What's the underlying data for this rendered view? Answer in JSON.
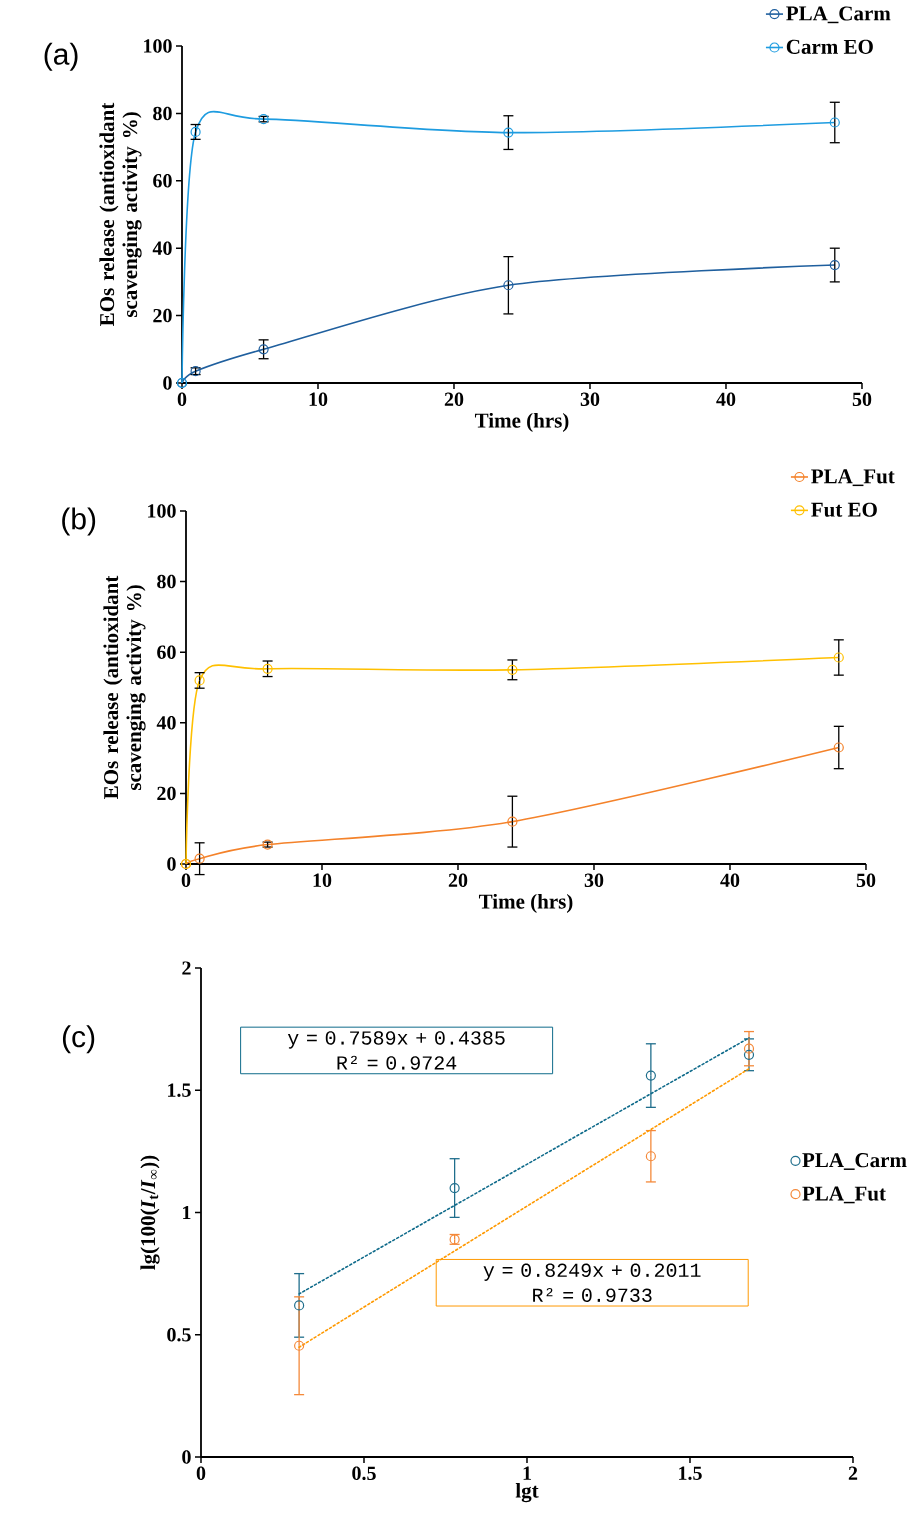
{
  "chart_data": [
    {
      "type": "line",
      "annotations": [
        "(a)"
      ],
      "xlabel": "Time (hrs)",
      "ylabel": "EOs release (antioxidant scavenging activity %)",
      "x": [
        0,
        1,
        6,
        24,
        48
      ],
      "xlim": [
        0,
        50
      ],
      "xticks": [
        0,
        10,
        20,
        30,
        40,
        50
      ],
      "ylim": [
        0,
        100
      ],
      "yticks": [
        0,
        20,
        40,
        60,
        80,
        100
      ],
      "marker": "circle",
      "legend": "top right",
      "series": [
        {
          "name": "PLA_Carm",
          "color": "#1f5f9e",
          "values": [
            0,
            3.5,
            10,
            29,
            35
          ],
          "errors": [
            null,
            1,
            2.8,
            8.5,
            5
          ]
        },
        {
          "name": "Carm EO",
          "color": "#1e9ce0",
          "values": [
            0,
            74.5,
            78.3,
            74.3,
            77.3
          ],
          "errors": [
            null,
            2.2,
            0.8,
            5,
            6
          ]
        }
      ]
    },
    {
      "type": "line",
      "annotations": [
        "(b)"
      ],
      "xlabel": "Time (hrs)",
      "ylabel": "EOs release (antioxidant scavenging activity %)",
      "x": [
        0,
        1,
        6,
        24,
        48
      ],
      "xlim": [
        0,
        50
      ],
      "xticks": [
        0,
        10,
        20,
        30,
        40,
        50
      ],
      "ylim": [
        0,
        100
      ],
      "yticks": [
        0,
        20,
        40,
        60,
        80,
        100
      ],
      "marker": "circle",
      "legend": "top right",
      "series": [
        {
          "name": "PLA_Fut",
          "color": "#f4822a",
          "values": [
            0,
            1.5,
            5.5,
            12,
            33
          ],
          "errors": [
            null,
            4.5,
            0.7,
            7.2,
            6
          ]
        },
        {
          "name": "Fut EO",
          "color": "#ffc000",
          "values": [
            0,
            52,
            55.3,
            55,
            58.5
          ],
          "errors": [
            null,
            2.2,
            2.2,
            2.8,
            5
          ]
        }
      ]
    },
    {
      "type": "scatter",
      "annotations": [
        "(c)",
        "y = 0.7589x + 0.4385\nR² = 0.9724",
        "y = 0.8249x + 0.2011\nR² = 0.9733"
      ],
      "xlabel": "lgt",
      "ylabel": "lg(100(*I*$_{t}$/*I*$_{∞}$))",
      "xlim": [
        0,
        2
      ],
      "xticks": [
        0,
        0.5,
        1,
        1.5,
        2
      ],
      "ylim": [
        0,
        2
      ],
      "yticks": [
        0,
        0.5,
        1,
        1.5,
        2
      ],
      "marker": "circle",
      "legend": "right",
      "series": [
        {
          "name": "PLA_Carm",
          "color": "#1f6e8c",
          "x": [
            0.301,
            0.778,
            1.38,
            1.681
          ],
          "values": [
            0.62,
            1.1,
            1.56,
            1.645
          ],
          "errors": [
            0.13,
            0.12,
            0.13,
            0.065
          ]
        },
        {
          "name": "PLA_Fut",
          "color": "#f4893a",
          "x": [
            0.301,
            0.778,
            1.38,
            1.681
          ],
          "values": [
            0.455,
            0.89,
            1.23,
            1.67
          ],
          "errors": [
            0.2,
            0.02,
            0.105,
            0.07
          ]
        },
        {
          "type": "line",
          "color": "#0e6a8a",
          "x": [
            0.301,
            1.681
          ],
          "values": [
            0.667,
            1.714
          ],
          "line_style": "dotted",
          "marker": "none"
        },
        {
          "type": "line",
          "color": "#ff9900",
          "x": [
            0.301,
            1.681
          ],
          "values": [
            0.449,
            1.588
          ],
          "line_style": "dotted",
          "marker": "none"
        }
      ]
    }
  ]
}
